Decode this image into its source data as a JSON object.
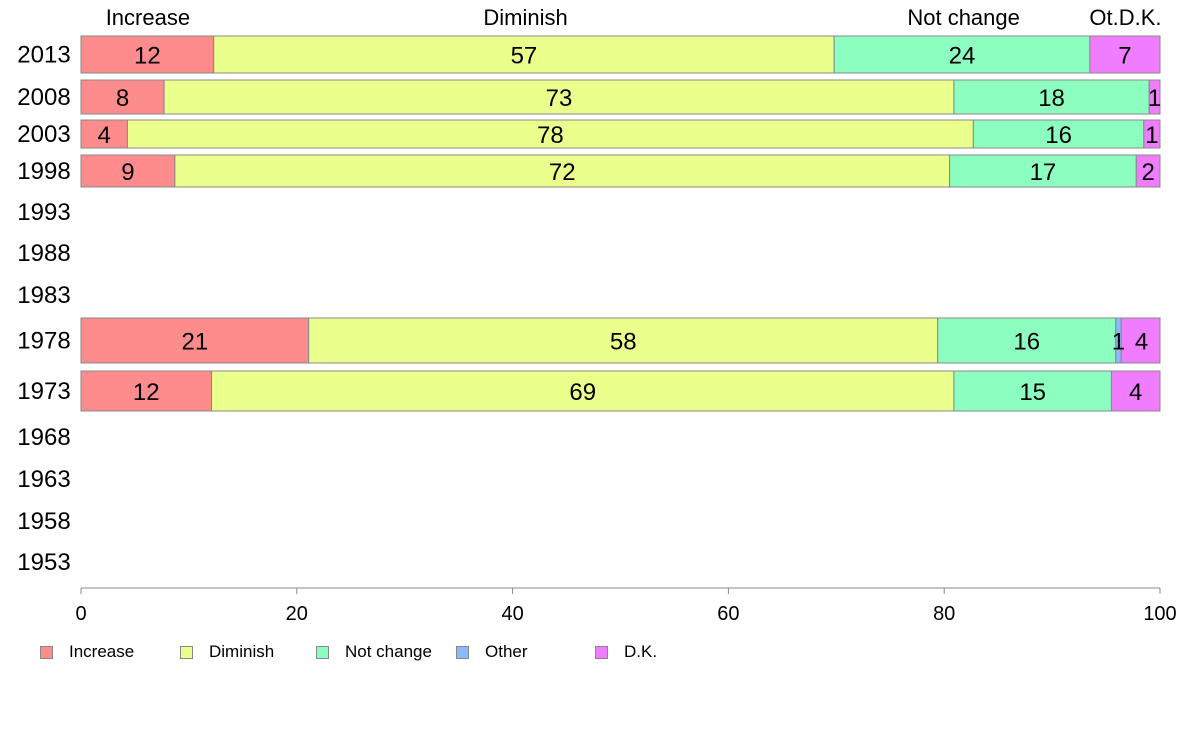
{
  "chart_data": {
    "type": "bar",
    "orientation": "horizontal",
    "stacked": true,
    "categories": [
      "2013",
      "2008",
      "2003",
      "1998",
      "1993",
      "1988",
      "1983",
      "1978",
      "1973",
      "1968",
      "1963",
      "1958",
      "1953"
    ],
    "series": [
      {
        "name": "Increase",
        "color": "#ff8c8c",
        "values": [
          12.3,
          7.7,
          4.3,
          8.7,
          null,
          null,
          null,
          21.1,
          12.1,
          null,
          null,
          null,
          null
        ],
        "labels": [
          "12",
          "8",
          "4",
          "9",
          "",
          "",
          "",
          "21",
          "12",
          "",
          "",
          "",
          ""
        ]
      },
      {
        "name": "Diminish",
        "color": "#ebff8c",
        "values": [
          57.5,
          73.2,
          78.4,
          71.8,
          null,
          null,
          null,
          58.3,
          68.8,
          null,
          null,
          null,
          null
        ],
        "labels": [
          "57",
          "73",
          "78",
          "72",
          "",
          "",
          "",
          "58",
          "69",
          "",
          "",
          "",
          ""
        ]
      },
      {
        "name": "Not change",
        "color": "#8cffc0",
        "values": [
          23.7,
          18.1,
          15.8,
          17.3,
          null,
          null,
          null,
          16.5,
          14.6,
          null,
          null,
          null,
          null
        ],
        "labels": [
          "24",
          "18",
          "16",
          "17",
          "",
          "",
          "",
          "16",
          "15",
          "",
          "",
          "",
          ""
        ]
      },
      {
        "name": "Other",
        "color": "#8cb8ff",
        "values": [
          0,
          0,
          0,
          0,
          null,
          null,
          null,
          0.5,
          0,
          null,
          null,
          null,
          null
        ],
        "labels": [
          "",
          "",
          "",
          "",
          "",
          "",
          "",
          "1",
          "",
          "",
          "",
          "",
          ""
        ]
      },
      {
        "name": "D.K.",
        "color": "#f07cff",
        "values": [
          6.5,
          1.0,
          1.5,
          2.2,
          null,
          null,
          null,
          3.6,
          4.5,
          null,
          null,
          null,
          null
        ],
        "labels": [
          "7",
          "1",
          "1",
          "2",
          "",
          "",
          "",
          "",
          "4",
          "",
          "",
          "",
          ""
        ]
      }
    ],
    "extra_segment_labels": [
      {
        "category": "1978",
        "series": "D.K.",
        "text": "4"
      }
    ],
    "top_labels": [
      {
        "text": "Increase",
        "x": 6.2
      },
      {
        "text": "Diminish",
        "x": 41.2
      },
      {
        "text": "Not change",
        "x": 81.8
      },
      {
        "text": "Ot.D.K.",
        "x": 96.8
      }
    ],
    "xlim": [
      0,
      100
    ],
    "x_ticks": [
      0,
      20,
      40,
      60,
      80,
      100
    ],
    "grid": false,
    "legend_position": "bottom-left"
  }
}
